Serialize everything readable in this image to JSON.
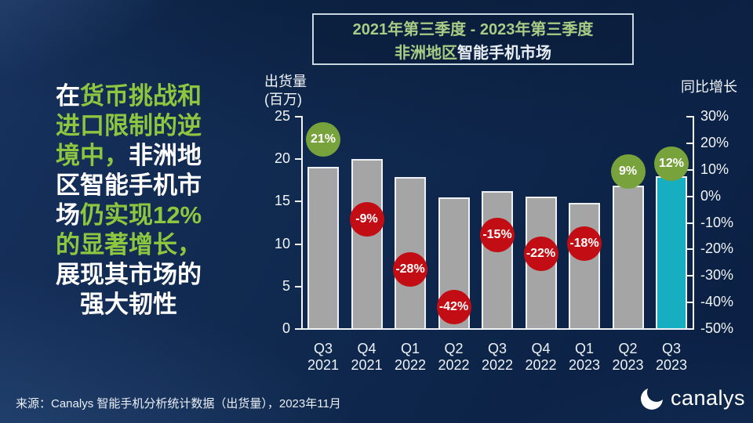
{
  "slide": {
    "title_box": {
      "line1": "2021年第三季度 - 2023年第三季度",
      "line2_highlight": "非洲地区",
      "line2_rest": "智能手机市场"
    },
    "commentary": {
      "seg1": "在",
      "seg2": "货币挑战和进口限制的逆境中，",
      "seg3": "非洲地区智能手机市场",
      "seg4": "仍实现12%的显著增长，",
      "seg5": "展现其市场的强大韧性"
    },
    "footer": {
      "source": "来源：Canalys 智能手机分析统计数据（出货量），2023年11月"
    },
    "logo": {
      "icon": "canalys-swoosh-icon",
      "text": "canalys"
    },
    "colors": {
      "accent_green": "#8dc63f",
      "title_green": "#a8cc85",
      "background_navy": "#0e2750"
    }
  },
  "chart_data": {
    "type": "bar",
    "title": "2021年第三季度 - 2023年第三季度 非洲地区智能手机市场",
    "categories": [
      "Q3 2021",
      "Q4 2021",
      "Q1 2022",
      "Q2 2022",
      "Q3 2022",
      "Q4 2022",
      "Q1 2023",
      "Q2 2023",
      "Q3 2023"
    ],
    "series": [
      {
        "name": "出货量（百万）",
        "kind": "bar",
        "values": [
          19.0,
          19.9,
          17.8,
          15.4,
          16.1,
          15.5,
          14.8,
          16.8,
          17.9
        ]
      },
      {
        "name": "同比增长",
        "kind": "bubble",
        "values": [
          21,
          -9,
          -28,
          -42,
          -15,
          -22,
          -18,
          9,
          12
        ],
        "labels": [
          "21%",
          "-9%",
          "-28%",
          "-42%",
          "-15%",
          "-22%",
          "-18%",
          "9%",
          "12%"
        ]
      }
    ],
    "highlight_index": 8,
    "left_axis": {
      "title": "出货量",
      "subtitle": "(百万)",
      "ticks": [
        25,
        20,
        15,
        10,
        5,
        0
      ],
      "range": [
        0,
        25
      ]
    },
    "right_axis": {
      "title": "同比增长",
      "ticks": [
        30,
        20,
        10,
        0,
        -10,
        -20,
        -30,
        -40,
        -50
      ],
      "tick_suffix": "%",
      "range": [
        -50,
        30
      ]
    },
    "legend": "none",
    "grid": false,
    "colors": {
      "bar": "#a5a5a5",
      "bar_highlight": "#17aec2",
      "bar_border": "#eef2f6",
      "bubble_positive": "#78a23c",
      "bubble_negative": "#c30d14"
    }
  }
}
